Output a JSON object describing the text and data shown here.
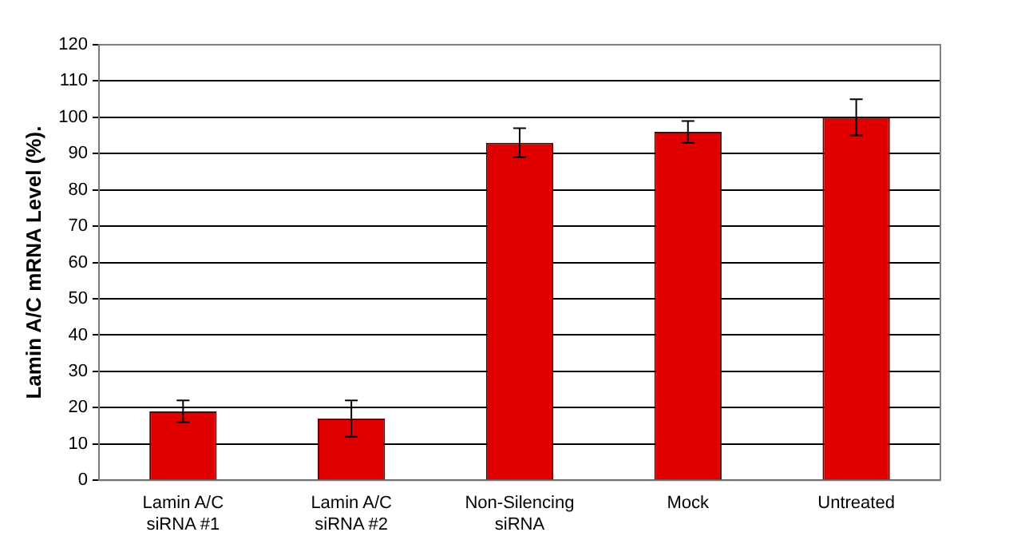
{
  "chart_data": {
    "type": "bar",
    "ylabel": "Lamin A/C mRNA Level (%).",
    "categories": [
      "Lamin A/C siRNA #1",
      "Lamin A/C siRNA #2",
      "Non-Silencing siRNA",
      "Mock",
      "Untreated"
    ],
    "values": [
      19,
      17,
      93,
      96,
      100
    ],
    "errors": [
      3,
      5,
      4,
      3,
      5
    ],
    "color": "#e00000",
    "ylim": [
      0,
      120
    ],
    "yticks": [
      0,
      10,
      20,
      30,
      40,
      50,
      60,
      70,
      80,
      90,
      100,
      110,
      120
    ],
    "grid": "y",
    "legend": false
  }
}
